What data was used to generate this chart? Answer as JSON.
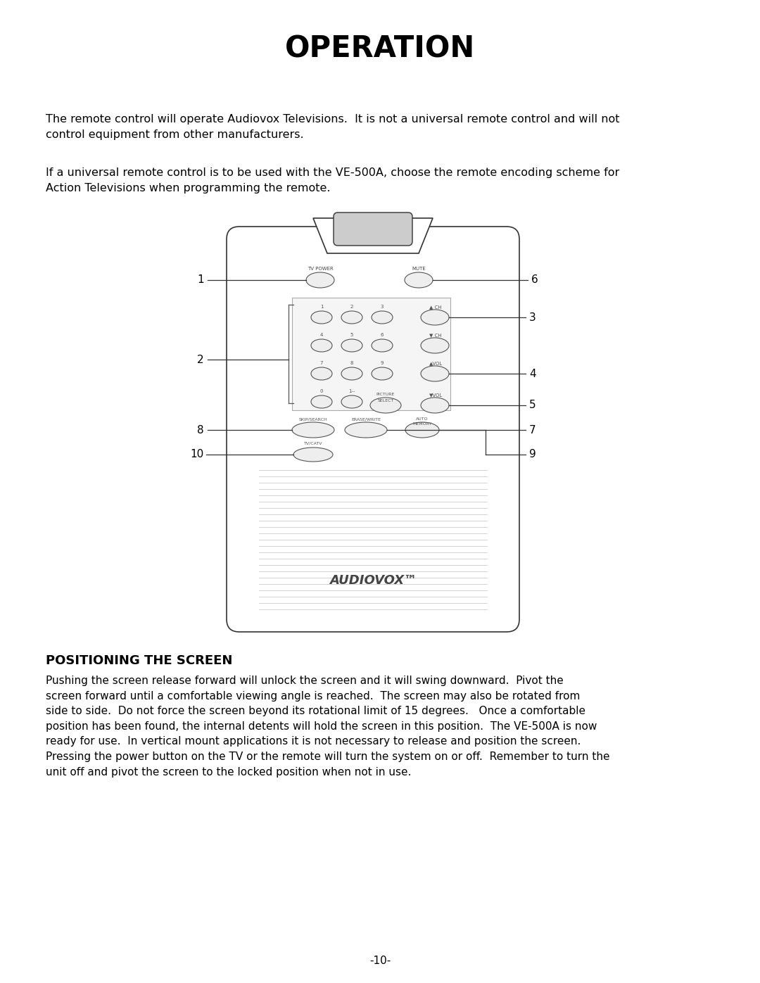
{
  "title": "OPERATION",
  "para1": "The remote control will operate Audiovox Televisions.  It is not a universal remote control and will not\ncontrol equipment from other manufacturers.",
  "para2": "If a universal remote control is to be used with the VE-500A, choose the remote encoding scheme for\nAction Televisions when programming the remote.",
  "section_title": "POSITIONING THE SCREEN",
  "section_body": "Pushing the screen release forward will unlock the screen and it will swing downward.  Pivot the\nscreen forward until a comfortable viewing angle is reached.  The screen may also be rotated from\nside to side.  Do not force the screen beyond its rotational limit of 15 degrees.   Once a comfortable\nposition has been found, the internal detents will hold the screen in this position.  The VE-500A is now\nready for use.  In vertical mount applications it is not necessary to release and position the screen.\nPressing the power button on the TV or the remote will turn the system on or off.  Remember to turn the\nunit off and pivot the screen to the locked position when not in use.",
  "page_number": "-10-",
  "bg_color": "#ffffff",
  "text_color": "#000000"
}
